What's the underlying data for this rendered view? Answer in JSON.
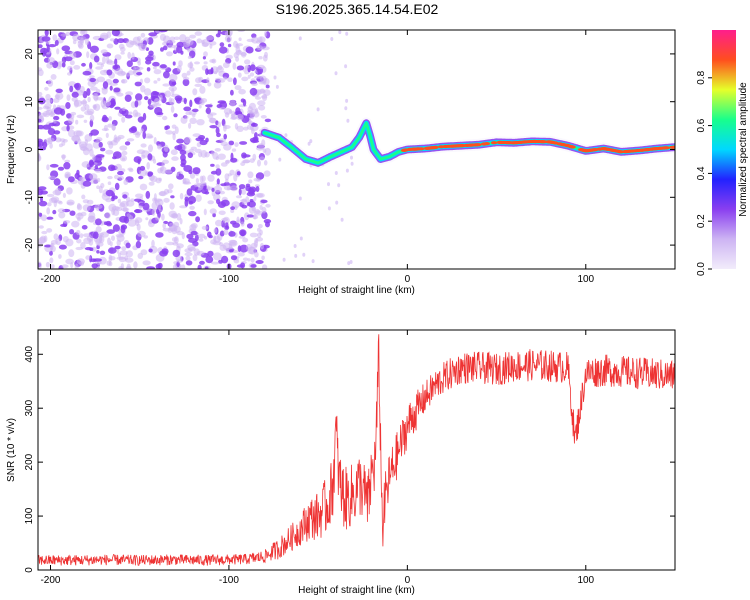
{
  "figure": {
    "title": "S196.2025.365.14.54.E02"
  },
  "chart_data": [
    {
      "type": "heatmap",
      "xlabel": "Height of straight line (km)",
      "ylabel": "Frequency (Hz)",
      "xlim": [
        -207,
        150
      ],
      "ylim": [
        -25,
        25
      ],
      "xticks": [
        -200,
        -100,
        0,
        100
      ],
      "yticks": [
        -20,
        -10,
        0,
        10,
        20
      ],
      "colorbar": {
        "label": "Normalized spectral amplitude",
        "range": [
          0,
          1
        ],
        "ticks": [
          0,
          0.2,
          0.4,
          0.6,
          0.8
        ],
        "tick_labels": [
          "0.0",
          "0.2",
          "0.4",
          "0.6",
          "0.8"
        ],
        "colormap": [
          "#f2ecfb",
          "#cdb4f3",
          "#8a3ff0",
          "#2222ff",
          "#00d8ff",
          "#18ff8c",
          "#e6ff2a",
          "#ff4e1e",
          "#ff1e8c"
        ]
      },
      "noise_region": {
        "x_from": -207,
        "x_to": -78,
        "f_from": -25,
        "f_to": 25,
        "amplitude": 0.08
      },
      "signal_trace": {
        "heights_km": [
          -80,
          -72,
          -65,
          -57,
          -50,
          -43,
          -37,
          -31,
          -27,
          -23,
          -21,
          -19,
          -15,
          -10,
          -5,
          0,
          10,
          20,
          30,
          40,
          50,
          60,
          70,
          80,
          90,
          100,
          110,
          120,
          130,
          140,
          150
        ],
        "frequency_hz": [
          3.5,
          2.5,
          0.5,
          -2.0,
          -2.8,
          -1.5,
          -0.5,
          0.5,
          2.5,
          5.5,
          3.0,
          0.0,
          -2.0,
          -1.5,
          -0.5,
          0.0,
          0.2,
          0.6,
          0.8,
          1.0,
          1.5,
          1.4,
          1.7,
          1.6,
          0.8,
          -0.3,
          0.2,
          -0.5,
          -0.2,
          0.2,
          0.5
        ],
        "amplitude": [
          0.3,
          0.3,
          0.3,
          0.35,
          0.4,
          0.4,
          0.45,
          0.45,
          0.45,
          0.45,
          0.45,
          0.5,
          0.6,
          0.65,
          0.7,
          0.9,
          0.9,
          0.85,
          0.9,
          0.9,
          0.9,
          0.85,
          0.9,
          0.9,
          0.9,
          0.9,
          0.9,
          0.9,
          0.9,
          0.9,
          0.9
        ]
      }
    },
    {
      "type": "line",
      "xlabel": "Height of straight line (km)",
      "ylabel": "SNR (10 * v/v)",
      "xlim": [
        -207,
        150
      ],
      "ylim": [
        0,
        445
      ],
      "xticks": [
        -200,
        -100,
        0,
        100
      ],
      "yticks": [
        0,
        100,
        200,
        300,
        400
      ],
      "series": [
        {
          "name": "SNR",
          "color": "#ee3333",
          "x": [
            -207,
            -190,
            -170,
            -150,
            -130,
            -110,
            -90,
            -80,
            -72,
            -65,
            -60,
            -55,
            -50,
            -45,
            -42,
            -40,
            -38,
            -35,
            -30,
            -27,
            -25,
            -22,
            -20,
            -18,
            -16,
            -14,
            -12,
            -10,
            -6,
            -2,
            2,
            6,
            10,
            15,
            20,
            25,
            30,
            40,
            50,
            60,
            70,
            80,
            90,
            94,
            100,
            110,
            120,
            130,
            140,
            150
          ],
          "values": [
            18,
            18,
            19,
            18,
            19,
            18,
            20,
            25,
            40,
            60,
            75,
            95,
            100,
            120,
            150,
            250,
            160,
            130,
            140,
            160,
            150,
            120,
            180,
            200,
            390,
            80,
            140,
            170,
            210,
            250,
            280,
            300,
            320,
            340,
            355,
            365,
            375,
            375,
            372,
            378,
            380,
            378,
            375,
            240,
            365,
            370,
            368,
            365,
            362,
            360
          ],
          "noise_amplitude": [
            10,
            10,
            10,
            10,
            10,
            10,
            10,
            12,
            20,
            25,
            30,
            40,
            45,
            55,
            60,
            70,
            65,
            60,
            60,
            60,
            60,
            60,
            60,
            60,
            60,
            55,
            50,
            50,
            45,
            40,
            40,
            35,
            30,
            30,
            30,
            30,
            30,
            30,
            30,
            30,
            30,
            30,
            30,
            30,
            30,
            30,
            30,
            30,
            30,
            30
          ]
        }
      ]
    }
  ]
}
